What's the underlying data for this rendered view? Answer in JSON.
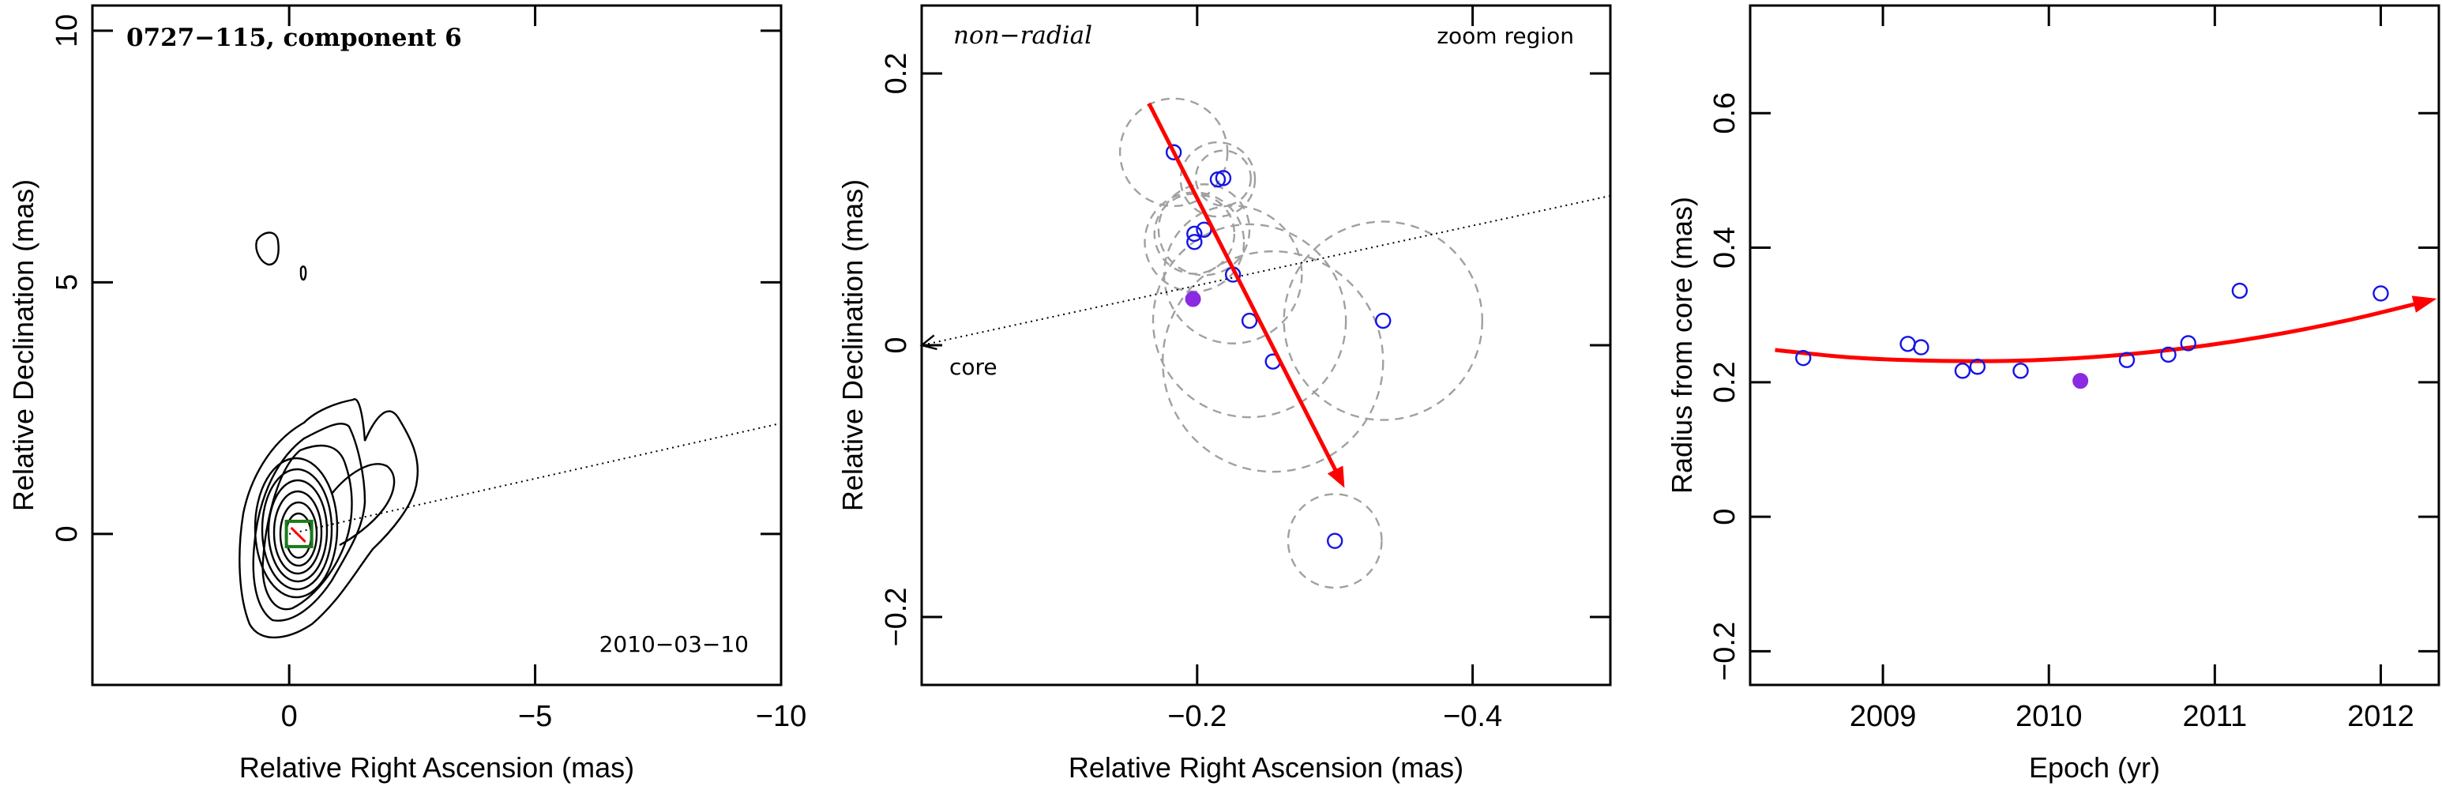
{
  "chart_data": [
    {
      "type": "contour-map",
      "title": "0727−115, component 6",
      "epoch_label": "2010−03−10",
      "xlabel": "Relative Right Ascension (mas)",
      "ylabel": "Relative Declination (mas)",
      "xlim": [
        4,
        -10
      ],
      "ylim": [
        -3,
        10.5
      ],
      "xticks": [
        0,
        -5,
        -10
      ],
      "xtick_labels": [
        "0",
        "−5",
        "−10"
      ],
      "yticks": [
        0,
        5,
        10
      ],
      "ytick_labels": [
        "0",
        "5",
        "10"
      ],
      "projection_line": {
        "from": [
          0,
          0
        ],
        "to": [
          -10,
          2.2
        ]
      },
      "component_position": [
        -0.2,
        0.0
      ],
      "colors": {
        "marker_box": "#1a7a1a",
        "marker_arrow": "#ff0000"
      }
    },
    {
      "type": "scatter",
      "annotation_left": "non−radial",
      "annotation_right": "zoom region",
      "core_label": "core",
      "xlabel": "Relative Right Ascension (mas)",
      "ylabel": "Relative Declination (mas)",
      "xlim": [
        0,
        -0.5
      ],
      "ylim": [
        -0.25,
        0.25
      ],
      "xticks": [
        -0.2,
        -0.4
      ],
      "xtick_labels": [
        "−0.2",
        "−0.4"
      ],
      "yticks": [
        -0.2,
        0,
        0.2
      ],
      "ytick_labels": [
        "−0.2",
        "0",
        "0.2"
      ],
      "points_open": [
        {
          "x": -0.183,
          "y": 0.142,
          "r": 0.039
        },
        {
          "x": -0.215,
          "y": 0.122,
          "r": 0.027
        },
        {
          "x": -0.219,
          "y": 0.123,
          "r": 0.02
        },
        {
          "x": -0.198,
          "y": 0.082,
          "r": 0.029
        },
        {
          "x": -0.205,
          "y": 0.085,
          "r": 0.033
        },
        {
          "x": -0.198,
          "y": 0.076,
          "r": 0.036
        },
        {
          "x": -0.226,
          "y": 0.052,
          "r": 0.05
        },
        {
          "x": -0.238,
          "y": 0.018,
          "r": 0.07
        },
        {
          "x": -0.255,
          "y": -0.012,
          "r": 0.08
        },
        {
          "x": -0.335,
          "y": 0.018,
          "r": 0.072
        },
        {
          "x": -0.3,
          "y": -0.144,
          "r": 0.034
        }
      ],
      "point_filled": {
        "x": -0.197,
        "y": 0.034
      },
      "core_line": {
        "from": [
          -0.5,
          0.11
        ],
        "to": [
          0,
          0
        ]
      },
      "motion_arrow": {
        "from": [
          -0.165,
          0.178
        ],
        "to": [
          -0.307,
          -0.105
        ]
      },
      "colors": {
        "points": "#1414e6",
        "filled": "#8a2be2",
        "circles": "#a0a0a0",
        "arrow": "#ff0000"
      }
    },
    {
      "type": "scatter",
      "xlabel": "Epoch (yr)",
      "ylabel": "Radius from core (mas)",
      "xlim": [
        2008.2,
        2012.35
      ],
      "ylim": [
        -0.25,
        0.76
      ],
      "xticks": [
        2009,
        2010,
        2011,
        2012
      ],
      "xtick_labels": [
        "2009",
        "2010",
        "2011",
        "2012"
      ],
      "yticks": [
        -0.2,
        0,
        0.2,
        0.4,
        0.6
      ],
      "ytick_labels": [
        "−0.2",
        "0",
        "0.2",
        "0.4",
        "0.6"
      ],
      "points_open": [
        {
          "x": 2008.52,
          "y": 0.236
        },
        {
          "x": 2009.15,
          "y": 0.257
        },
        {
          "x": 2009.23,
          "y": 0.252
        },
        {
          "x": 2009.48,
          "y": 0.217
        },
        {
          "x": 2009.57,
          "y": 0.223
        },
        {
          "x": 2009.83,
          "y": 0.217
        },
        {
          "x": 2010.47,
          "y": 0.233
        },
        {
          "x": 2010.72,
          "y": 0.241
        },
        {
          "x": 2010.84,
          "y": 0.258
        },
        {
          "x": 2011.15,
          "y": 0.336
        },
        {
          "x": 2012.0,
          "y": 0.332
        }
      ],
      "point_filled": {
        "x": 2010.19,
        "y": 0.202
      },
      "fit_curve": {
        "x": [
          2008.35,
          2008.8,
          2009.3,
          2009.8,
          2010.3,
          2010.8,
          2011.3,
          2011.8,
          2012.3
        ],
        "y": [
          0.248,
          0.237,
          0.232,
          0.232,
          0.238,
          0.25,
          0.268,
          0.292,
          0.322
        ]
      },
      "colors": {
        "points": "#1414e6",
        "filled": "#8a2be2",
        "fit": "#ff0000"
      }
    }
  ]
}
